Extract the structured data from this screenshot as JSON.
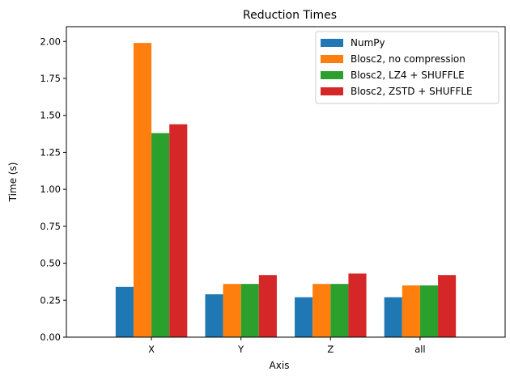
{
  "chart_data": {
    "type": "bar",
    "title": "Reduction Times",
    "xlabel": "Axis",
    "ylabel": "Time (s)",
    "categories": [
      "X",
      "Y",
      "Z",
      "all"
    ],
    "ylim": [
      0,
      2.1
    ],
    "yticks": [
      "0.00",
      "0.25",
      "0.50",
      "0.75",
      "1.00",
      "1.25",
      "1.50",
      "1.75",
      "2.00"
    ],
    "grid": false,
    "legend_position": "top-right",
    "series": [
      {
        "name": "NumPy",
        "color": "#1f77b4",
        "values": [
          0.34,
          0.29,
          0.27,
          0.27
        ]
      },
      {
        "name": "Blosc2, no compression",
        "color": "#ff7f0e",
        "values": [
          1.99,
          0.36,
          0.36,
          0.35
        ]
      },
      {
        "name": "Blosc2, LZ4 + SHUFFLE",
        "color": "#2ca02c",
        "values": [
          1.38,
          0.36,
          0.36,
          0.35
        ]
      },
      {
        "name": "Blosc2, ZSTD + SHUFFLE",
        "color": "#d62728",
        "values": [
          1.44,
          0.42,
          0.43,
          0.42
        ]
      }
    ]
  }
}
